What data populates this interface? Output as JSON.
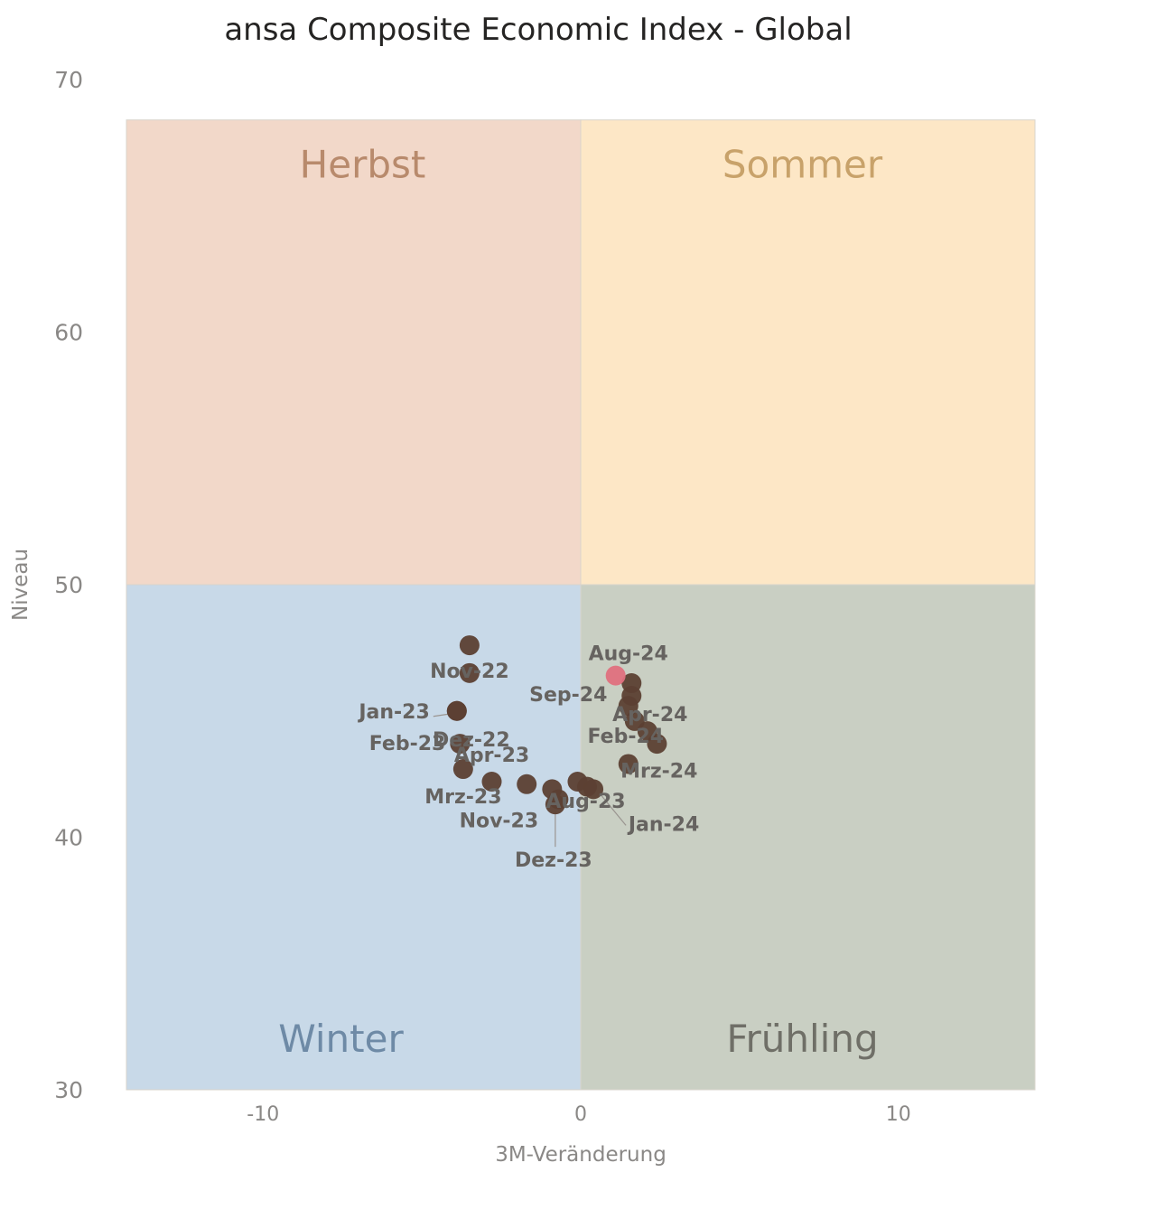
{
  "chart_data": {
    "type": "scatter",
    "title": "ansa Composite Economic Index - Global",
    "xlabel": "3M-Veränderung",
    "ylabel": "Niveau",
    "xlim": [
      -14.3,
      14.3
    ],
    "ylim": [
      30,
      70
    ],
    "x_ticks": [
      -10,
      0,
      10
    ],
    "x_tick_labels": [
      "-10",
      "0",
      "10"
    ],
    "y_ticks": [
      30,
      40,
      50,
      60,
      70
    ],
    "y_tick_labels": [
      "30",
      "40",
      "50",
      "60",
      "70"
    ],
    "quadrants": [
      {
        "name": "Herbst",
        "x": [
          -14.3,
          0
        ],
        "y": [
          50,
          68.4
        ],
        "fill": "#f2d8c9",
        "text_color": "#b88a6c"
      },
      {
        "name": "Sommer",
        "x": [
          0,
          14.3
        ],
        "y": [
          50,
          68.4
        ],
        "fill": "#fde7c6",
        "text_color": "#c8a26a"
      },
      {
        "name": "Winter",
        "x": [
          -14.3,
          0
        ],
        "y": [
          30,
          50
        ],
        "fill": "#c8d9e8",
        "text_color": "#6e8aa6"
      },
      {
        "name": "Frühling",
        "x": [
          0,
          14.3
        ],
        "y": [
          30,
          50
        ],
        "fill": "#c9cfc3",
        "text_color": "#6f6f67"
      }
    ],
    "grid": false,
    "series": [
      {
        "color": "#5c4033",
        "points": [
          {
            "x": -3.5,
            "y": 47.6,
            "label": ""
          },
          {
            "x": -3.5,
            "y": 46.5,
            "label": "Nov-22"
          },
          {
            "x": -3.9,
            "y": 45.0,
            "label": "Dez-22"
          },
          {
            "x": -3.9,
            "y": 45.0,
            "label": "Jan-23"
          },
          {
            "x": -3.8,
            "y": 43.7,
            "label": "Feb-23"
          },
          {
            "x": -3.7,
            "y": 42.7,
            "label": "Mrz-23"
          },
          {
            "x": -2.8,
            "y": 42.2,
            "label": "Apr-23"
          },
          {
            "x": -1.7,
            "y": 42.1,
            "label": ""
          },
          {
            "x": -0.9,
            "y": 41.9,
            "label": ""
          },
          {
            "x": -0.7,
            "y": 41.5,
            "label": "Nov-23"
          },
          {
            "x": -0.8,
            "y": 41.3,
            "label": "Dez-23"
          },
          {
            "x": -0.1,
            "y": 42.2,
            "label": "Aug-23"
          },
          {
            "x": 0.2,
            "y": 42.0,
            "label": ""
          },
          {
            "x": 0.4,
            "y": 41.9,
            "label": "Jan-24"
          },
          {
            "x": 1.5,
            "y": 42.9,
            "label": "Mrz-24"
          },
          {
            "x": 1.7,
            "y": 44.6,
            "label": "Feb-24"
          },
          {
            "x": 2.1,
            "y": 44.2,
            "label": ""
          },
          {
            "x": 2.4,
            "y": 43.7,
            "label": ""
          },
          {
            "x": 1.5,
            "y": 45.2,
            "label": "Apr-24"
          },
          {
            "x": 1.6,
            "y": 45.6,
            "label": ""
          },
          {
            "x": 1.6,
            "y": 46.1,
            "label": "Sep-24"
          }
        ]
      },
      {
        "color": "#e0707e",
        "points": [
          {
            "x": 1.1,
            "y": 46.4,
            "label": "Aug-24"
          }
        ]
      }
    ]
  }
}
